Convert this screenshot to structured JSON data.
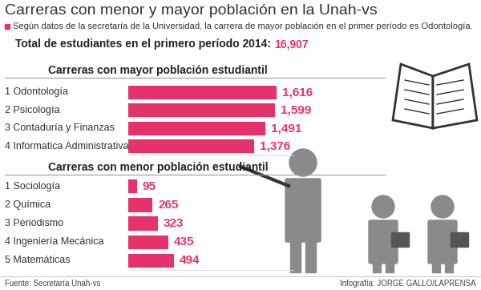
{
  "title": "Carreras con menor y mayor población en la Unah-vs",
  "subtitle": "Según datos de la secretaría de la Universidad, la carrera de mayor población en el primer período es Odontología.",
  "total": {
    "label": "Total de estudiantes en el primero período 2014:",
    "value": 16907,
    "value_label": "16,907"
  },
  "source": "Fuente: Secretaría Unah-vs",
  "credit": "Infografía: JORGE GALLO/LAPRENSA",
  "chart_data": [
    {
      "type": "bar",
      "orientation": "horizontal",
      "title": "Carreras con mayor población estudiantil",
      "categories": [
        "1 Odontología",
        "2 Psicología",
        "3 Contaduría y Finanzas",
        "4 Informatica Administrativa"
      ],
      "values": [
        1616,
        1599,
        1491,
        1376
      ],
      "value_labels": [
        "1,616",
        "1,599",
        "1,491",
        "1,376"
      ],
      "color": "#e5326c",
      "data_labels": true,
      "tick_labels": false,
      "xlim": [
        0,
        1800
      ]
    },
    {
      "type": "bar",
      "orientation": "horizontal",
      "title": "Carreras con menor población estudiantil",
      "categories": [
        "1 Sociología",
        "2 Química",
        "3 Periodismo",
        "4 Ingeniería Mecánica",
        "5 Matemáticas"
      ],
      "values": [
        95,
        265,
        323,
        435,
        494
      ],
      "color": "#e5326c",
      "data_labels": true,
      "tick_labels": false,
      "xlim": [
        0,
        1800
      ]
    }
  ]
}
